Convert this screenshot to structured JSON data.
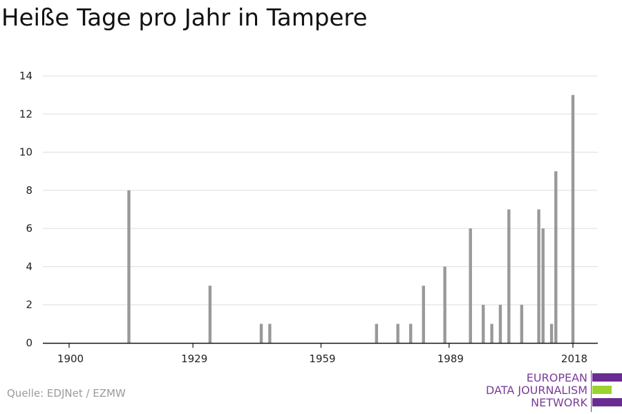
{
  "chart_data": {
    "type": "bar",
    "title": "Heiße Tage pro Jahr in Tampere",
    "xlabel": "",
    "ylabel": "",
    "xlim": [
      1897,
      2025
    ],
    "ylim": [
      0,
      14
    ],
    "yticks": [
      0,
      2,
      4,
      6,
      8,
      10,
      12,
      14
    ],
    "xticks": [
      1900,
      1929,
      1959,
      1989,
      2018
    ],
    "grid": true,
    "bar_color": "#999999",
    "x": [
      1914,
      1933,
      1945,
      1947,
      1972,
      1977,
      1980,
      1983,
      1988,
      1994,
      1997,
      1999,
      2001,
      2003,
      2006,
      2010,
      2011,
      2013,
      2014,
      2018
    ],
    "values": [
      8,
      3,
      1,
      1,
      1,
      1,
      1,
      3,
      4,
      6,
      2,
      1,
      2,
      7,
      2,
      7,
      6,
      1,
      9,
      13
    ]
  },
  "source": "Quelle: EDJNet / EZMW",
  "logo": {
    "lines": [
      "EUROPEAN",
      "DATA JOURNALISM",
      "NETWORK"
    ],
    "colors": {
      "purple": "#6a2c91",
      "green": "#9bd32c"
    }
  }
}
